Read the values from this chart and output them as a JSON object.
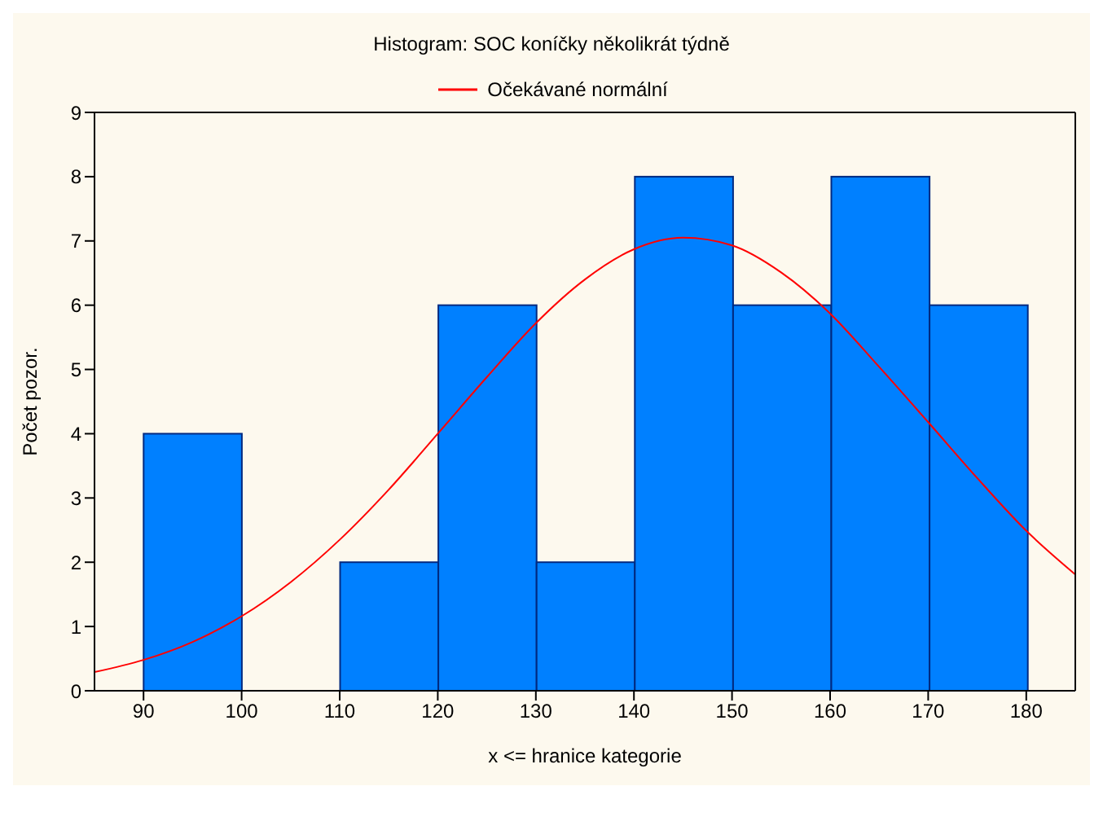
{
  "chart_data": {
    "type": "histogram",
    "title": "Histogram: SOC koníčky několikrát týdně",
    "xlabel": "x <= hranice kategorie",
    "ylabel": "Počet pozor.",
    "bins": [
      90,
      100,
      110,
      120,
      130,
      140,
      150,
      160,
      170,
      180
    ],
    "values": [
      4,
      0,
      2,
      6,
      2,
      8,
      6,
      8,
      6
    ],
    "color": "#0080ff",
    "series": [
      {
        "name": "Očekávané normální",
        "type": "line",
        "color": "#ff0000",
        "x": [
          85,
          90,
          95,
          100,
          105,
          110,
          115,
          120,
          125,
          130,
          135,
          140,
          145,
          150,
          155,
          160,
          165,
          170,
          175,
          180,
          185
        ],
        "values": [
          0.29,
          0.48,
          0.76,
          1.16,
          1.69,
          2.35,
          3.13,
          4.0,
          4.88,
          5.72,
          6.4,
          6.87,
          7.05,
          6.93,
          6.51,
          5.87,
          5.04,
          4.18,
          3.31,
          2.49,
          1.81
        ]
      }
    ],
    "xlim": [
      85,
      185
    ],
    "xticks": [
      90,
      100,
      110,
      120,
      130,
      140,
      150,
      160,
      170,
      180
    ],
    "ylim": [
      0,
      9
    ],
    "yticks": [
      0,
      1,
      2,
      3,
      4,
      5,
      6,
      7,
      8,
      9
    ],
    "grid": false,
    "legend": "top"
  }
}
